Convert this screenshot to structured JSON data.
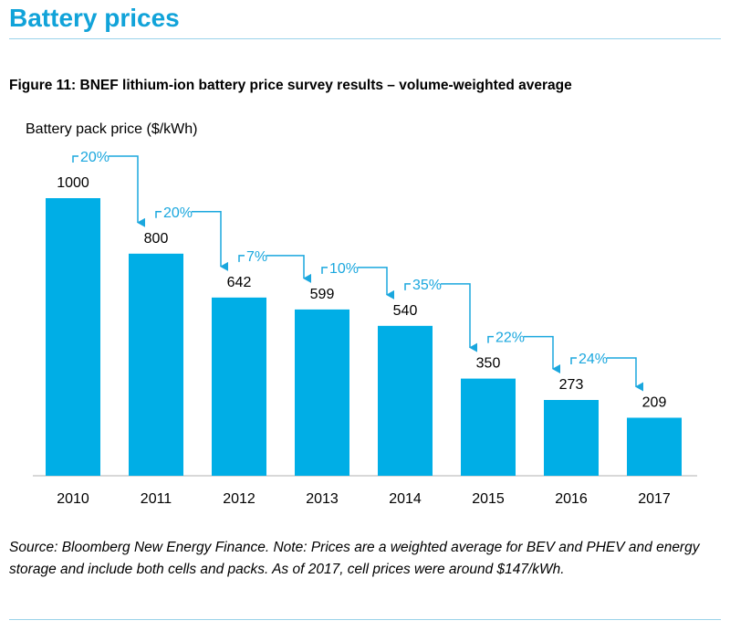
{
  "page": {
    "title": "Battery prices",
    "figure_title": "Figure 11: BNEF lithium-ion battery price survey results – volume-weighted average",
    "source_note": "Source: Bloomberg New Energy Finance. Note: Prices are a weighted average for BEV and PHEV and energy storage and include both cells and packs. As of 2017, cell prices were around $147/kWh."
  },
  "colors": {
    "bar": "#00aee6",
    "annotation": "#1aa7de",
    "title": "#11a3d9"
  },
  "chart_data": {
    "type": "bar",
    "title": "",
    "ylabel": "Battery pack price ($/kWh)",
    "xlabel": "",
    "categories": [
      "2010",
      "2011",
      "2012",
      "2013",
      "2014",
      "2015",
      "2016",
      "2017"
    ],
    "values": [
      1000,
      800,
      642,
      599,
      540,
      350,
      273,
      209
    ],
    "value_labels": [
      "1000",
      "800",
      "642",
      "599",
      "540",
      "350",
      "273",
      "209"
    ],
    "annotations": [
      {
        "from": "2010",
        "to": "2011",
        "label": "20%"
      },
      {
        "from": "2011",
        "to": "2012",
        "label": "20%"
      },
      {
        "from": "2012",
        "to": "2013",
        "label": "7%"
      },
      {
        "from": "2013",
        "to": "2014",
        "label": "10%"
      },
      {
        "from": "2014",
        "to": "2015",
        "label": "35%"
      },
      {
        "from": "2015",
        "to": "2016",
        "label": "22%"
      },
      {
        "from": "2016",
        "to": "2017",
        "label": "24%"
      }
    ],
    "ylim": [
      0,
      1000
    ],
    "grid": false,
    "legend": "none"
  }
}
